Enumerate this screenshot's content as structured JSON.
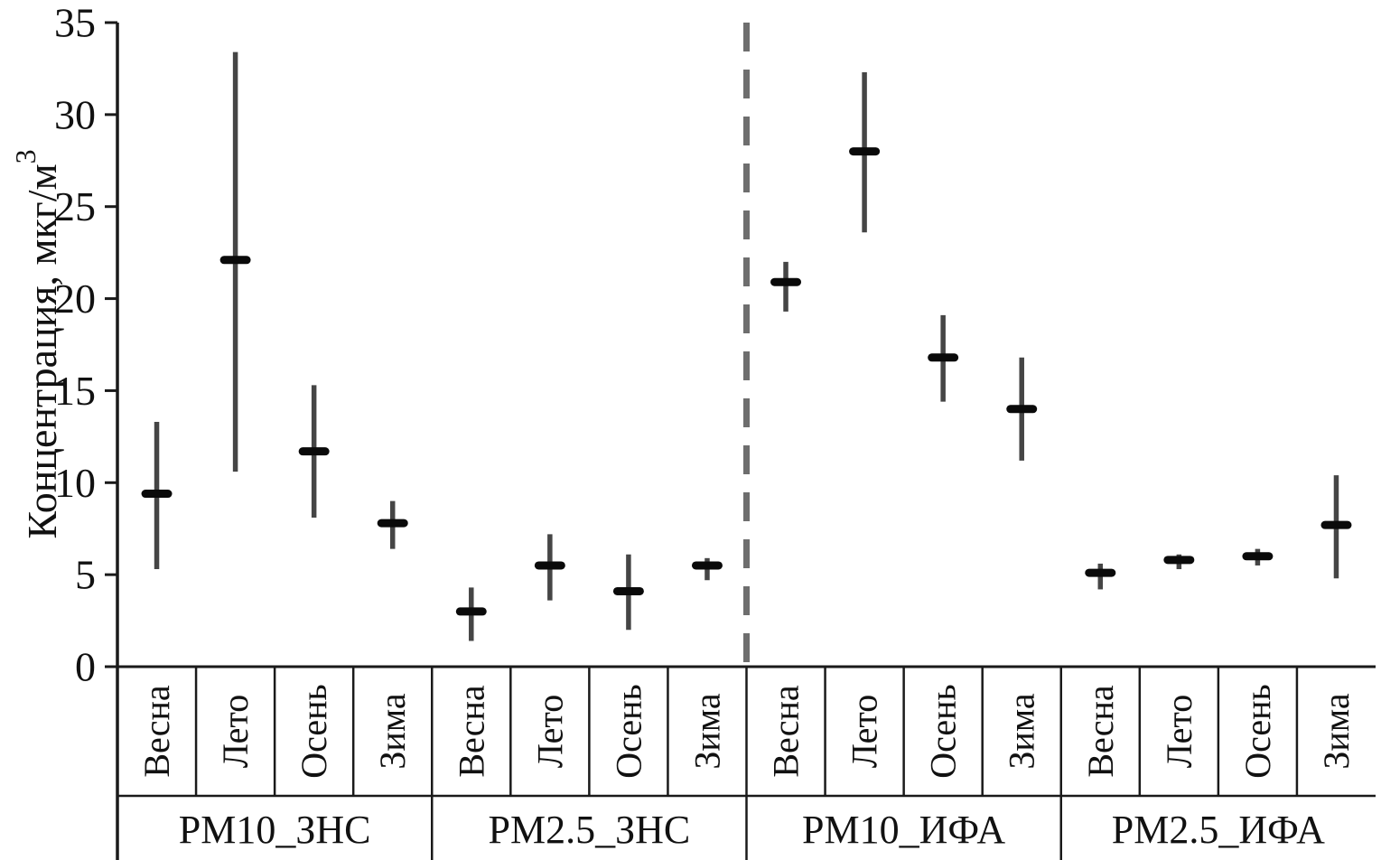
{
  "chart_data": {
    "type": "errorbar",
    "title": "",
    "ylabel": "Концентрация, мкг/м³",
    "ylabel_base": "Концентрация, мкг/м",
    "ylabel_superscript": "3",
    "ylim": [
      0,
      35
    ],
    "yticks": [
      0,
      5,
      10,
      15,
      20,
      25,
      30,
      35
    ],
    "grid": false,
    "divider_after_points": 8,
    "colors": {
      "axis": "#1a1a1a",
      "error_bar": "#454545",
      "mean_marker": "#0a0a0a",
      "divider_dash": "#6e6e6e",
      "cell_line": "#1a1a1a"
    },
    "groups": [
      {
        "label": "PM10_ЗНС",
        "points": [
          {
            "season": "Весна",
            "mean": 9.4,
            "low": 5.3,
            "high": 13.3
          },
          {
            "season": "Лето",
            "mean": 22.1,
            "low": 10.6,
            "high": 33.4
          },
          {
            "season": "Осень",
            "mean": 11.7,
            "low": 8.1,
            "high": 15.3
          },
          {
            "season": "Зима",
            "mean": 7.8,
            "low": 6.4,
            "high": 9.0
          }
        ]
      },
      {
        "label": "PM2.5_ЗНС",
        "points": [
          {
            "season": "Весна",
            "mean": 3.0,
            "low": 1.4,
            "high": 4.3
          },
          {
            "season": "Лето",
            "mean": 5.5,
            "low": 3.6,
            "high": 7.2
          },
          {
            "season": "Осень",
            "mean": 4.1,
            "low": 2.0,
            "high": 6.1
          },
          {
            "season": "Зима",
            "mean": 5.5,
            "low": 4.7,
            "high": 5.9
          }
        ]
      },
      {
        "label": "PM10_ИФА",
        "points": [
          {
            "season": "Весна",
            "mean": 20.9,
            "low": 19.3,
            "high": 22.0
          },
          {
            "season": "Лето",
            "mean": 28.0,
            "low": 23.6,
            "high": 32.3
          },
          {
            "season": "Осень",
            "mean": 16.8,
            "low": 14.4,
            "high": 19.1
          },
          {
            "season": "Зима",
            "mean": 14.0,
            "low": 11.2,
            "high": 16.8
          }
        ]
      },
      {
        "label": "PM2.5_ИФА",
        "points": [
          {
            "season": "Весна",
            "mean": 5.1,
            "low": 4.2,
            "high": 5.6
          },
          {
            "season": "Лето",
            "mean": 5.8,
            "low": 5.3,
            "high": 6.1
          },
          {
            "season": "Осень",
            "mean": 6.0,
            "low": 5.5,
            "high": 6.4
          },
          {
            "season": "Зима",
            "mean": 7.7,
            "low": 4.8,
            "high": 10.4
          }
        ]
      }
    ]
  }
}
